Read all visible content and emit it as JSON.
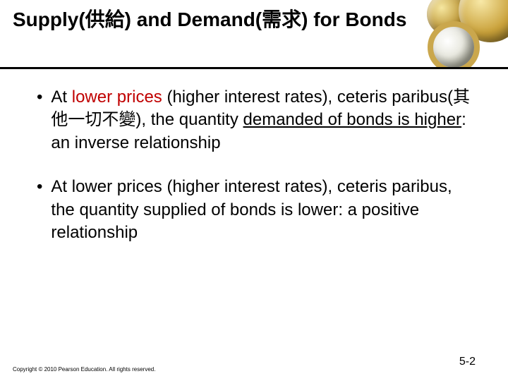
{
  "header": {
    "title": "Supply(供給) and Demand(需求) for Bonds"
  },
  "bullets": [
    {
      "pre": "At ",
      "hl": "lower prices",
      "mid": " (higher interest rates), ceteris paribus(其他一切不變), the quantity ",
      "u": "demanded of bonds is higher",
      "post": ": an inverse relationship"
    },
    {
      "text": "At lower prices (higher interest rates), ceteris paribus, the quantity supplied of bonds is lower: a positive relationship"
    }
  ],
  "footer": {
    "copyright": "Copyright © 2010 Pearson Education. All rights reserved.",
    "page": "5-2"
  }
}
